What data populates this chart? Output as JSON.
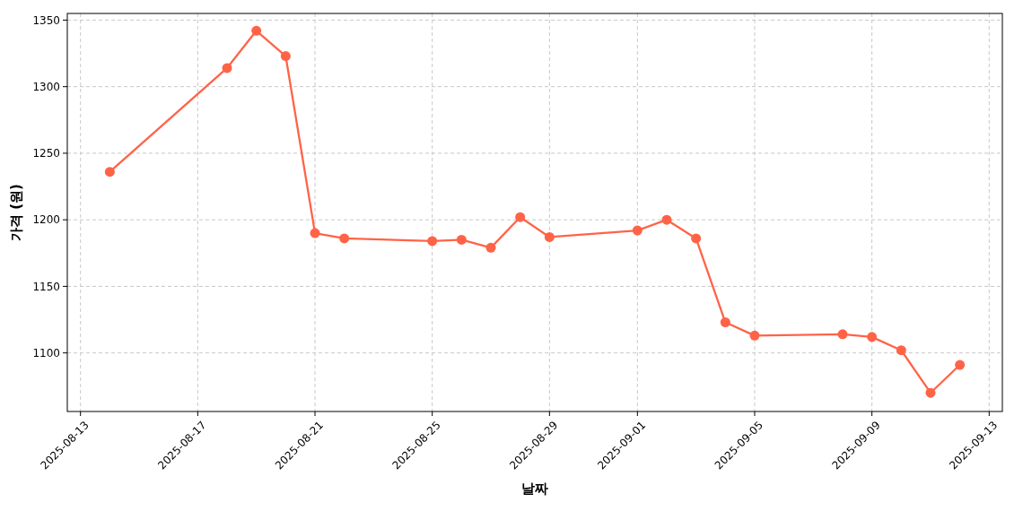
{
  "chart_data": {
    "type": "line",
    "xlabel": "날짜",
    "ylabel": "가격 (원)",
    "x": [
      "2025-08-14",
      "2025-08-18",
      "2025-08-19",
      "2025-08-20",
      "2025-08-21",
      "2025-08-22",
      "2025-08-25",
      "2025-08-26",
      "2025-08-27",
      "2025-08-28",
      "2025-08-29",
      "2025-09-01",
      "2025-09-02",
      "2025-09-03",
      "2025-09-04",
      "2025-09-05",
      "2025-09-08",
      "2025-09-09",
      "2025-09-10",
      "2025-09-11",
      "2025-09-12"
    ],
    "series": [
      {
        "color": "#ff6347",
        "values": [
          1236,
          1314,
          1342,
          1323,
          1190,
          1186,
          1184,
          1185,
          1179,
          1202,
          1187,
          1192,
          1200,
          1186,
          1123,
          1113,
          1114,
          1112,
          1102,
          1070,
          1091
        ]
      }
    ],
    "xlim": [
      "2025-08-12T13:12",
      "2025-09-13T10:48"
    ],
    "ylim": [
      1056,
      1355
    ],
    "xticks": [
      "2025-08-13",
      "2025-08-17",
      "2025-08-21",
      "2025-08-25",
      "2025-08-29",
      "2025-09-01",
      "2025-09-05",
      "2025-09-09",
      "2025-09-13"
    ],
    "yticks": [
      1100,
      1150,
      1200,
      1250,
      1300,
      1350
    ],
    "grid": true,
    "marker": "circle",
    "line_style": "solid"
  }
}
